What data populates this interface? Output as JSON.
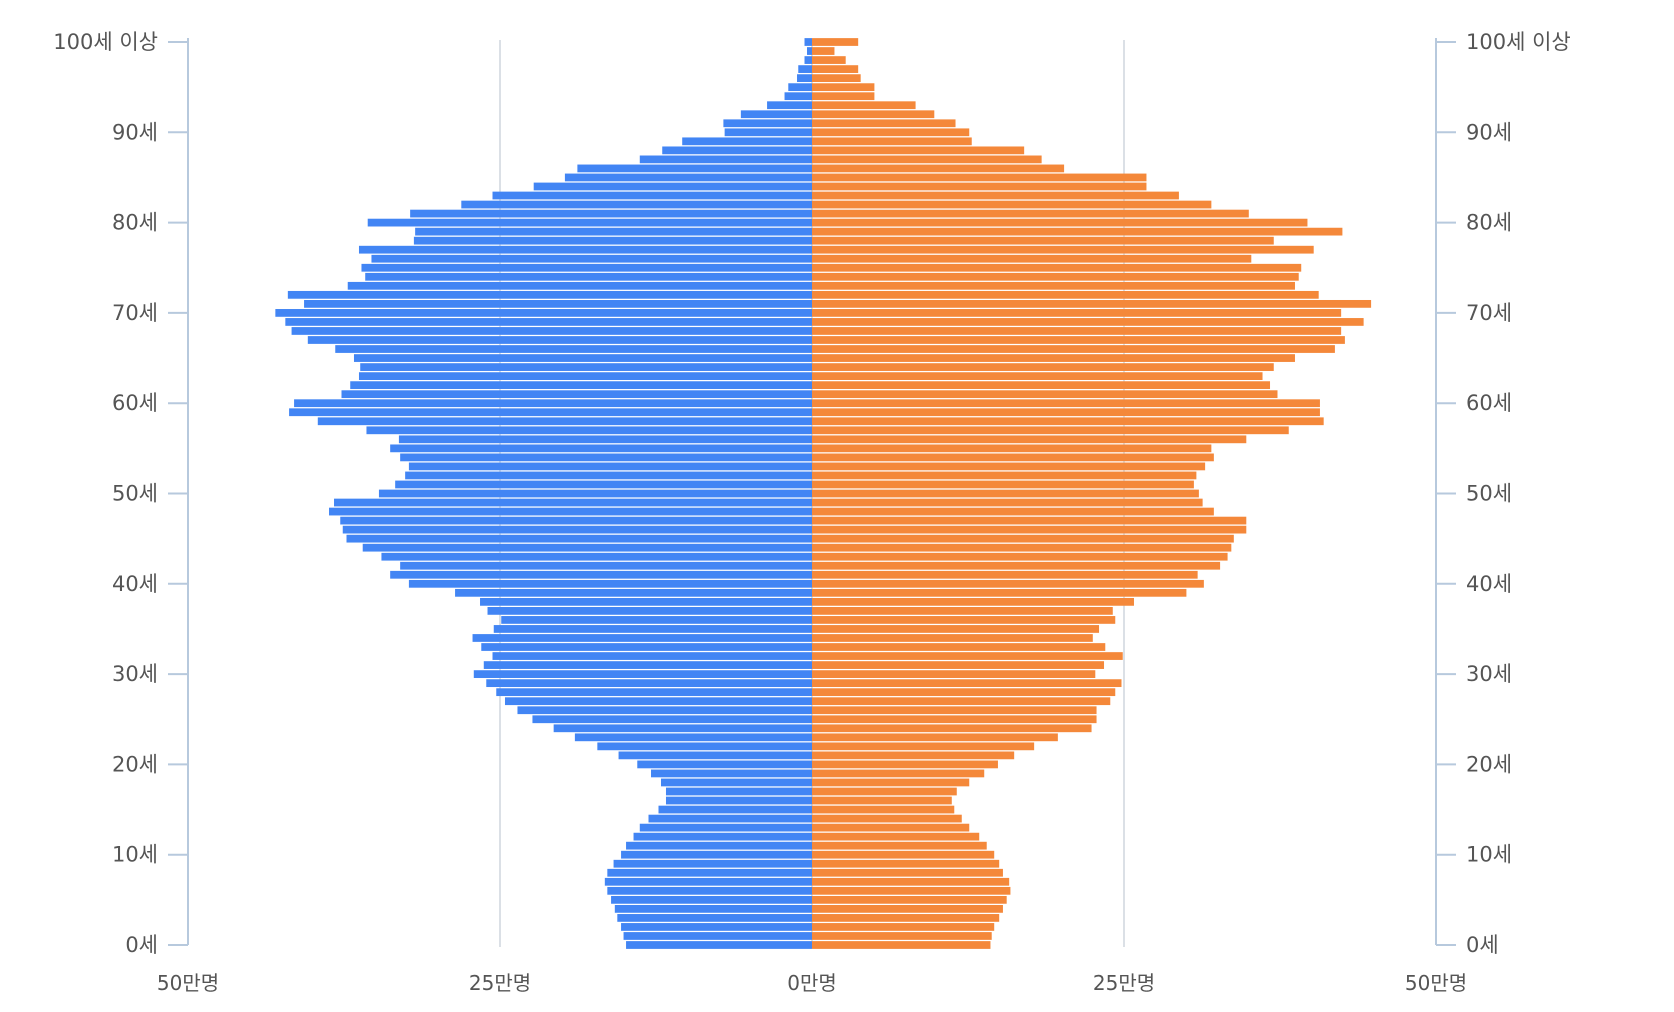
{
  "chart_data": {
    "type": "bar",
    "orientation": "horizontal",
    "subtype": "population-pyramid",
    "title": "",
    "unit": "만명",
    "xlim": [
      -50,
      50
    ],
    "colors": {
      "left": "#4285f4",
      "right": "#f4883a",
      "grid": "#cfd6de",
      "axis": "#b7c9dd"
    },
    "x_ticks": [
      {
        "value": -50,
        "label": "50만명"
      },
      {
        "value": -25,
        "label": "25만명"
      },
      {
        "value": 0,
        "label": "0만명"
      },
      {
        "value": 25,
        "label": "25만명"
      },
      {
        "value": 50,
        "label": "50만명"
      }
    ],
    "y_ticks": [
      {
        "age": 0,
        "label": "0세"
      },
      {
        "age": 10,
        "label": "10세"
      },
      {
        "age": 20,
        "label": "20세"
      },
      {
        "age": 30,
        "label": "30세"
      },
      {
        "age": 40,
        "label": "40세"
      },
      {
        "age": 50,
        "label": "50세"
      },
      {
        "age": 60,
        "label": "60세"
      },
      {
        "age": 70,
        "label": "70세"
      },
      {
        "age": 80,
        "label": "80세"
      },
      {
        "age": 90,
        "label": "90세"
      },
      {
        "age": 100,
        "label": "100세 이상"
      }
    ],
    "ages": [
      0,
      1,
      2,
      3,
      4,
      5,
      6,
      7,
      8,
      9,
      10,
      11,
      12,
      13,
      14,
      15,
      16,
      17,
      18,
      19,
      20,
      21,
      22,
      23,
      24,
      25,
      26,
      27,
      28,
      29,
      30,
      31,
      32,
      33,
      34,
      35,
      36,
      37,
      38,
      39,
      40,
      41,
      42,
      43,
      44,
      45,
      46,
      47,
      48,
      49,
      50,
      51,
      52,
      53,
      54,
      55,
      56,
      57,
      58,
      59,
      60,
      61,
      62,
      63,
      64,
      65,
      66,
      67,
      68,
      69,
      70,
      71,
      72,
      73,
      74,
      75,
      76,
      77,
      78,
      79,
      80,
      81,
      82,
      83,
      84,
      85,
      86,
      87,
      88,
      89,
      90,
      91,
      92,
      93,
      94,
      95,
      96,
      97,
      98,
      99,
      100
    ],
    "series": [
      {
        "side": "left",
        "values": [
          14.9,
          15.1,
          15.3,
          15.6,
          15.8,
          16.1,
          16.4,
          16.6,
          16.4,
          15.9,
          15.3,
          14.9,
          14.3,
          13.8,
          13.1,
          12.3,
          11.7,
          11.7,
          12.1,
          12.9,
          14.0,
          15.5,
          17.2,
          19.0,
          20.7,
          22.4,
          23.6,
          24.6,
          25.3,
          26.1,
          27.1,
          26.3,
          25.6,
          26.5,
          27.2,
          25.5,
          24.9,
          26.0,
          26.6,
          28.6,
          32.3,
          33.8,
          33.0,
          34.5,
          36.0,
          37.3,
          37.6,
          37.8,
          38.7,
          38.3,
          34.7,
          33.4,
          32.6,
          32.3,
          33.0,
          33.8,
          33.1,
          35.7,
          39.6,
          41.9,
          41.5,
          37.7,
          37.0,
          36.3,
          36.2,
          36.7,
          38.2,
          40.4,
          41.7,
          42.2,
          43.0,
          40.7,
          42.0,
          37.2,
          35.8,
          36.1,
          35.3,
          36.3,
          31.9,
          31.8,
          35.6,
          32.2,
          28.1,
          25.6,
          22.3,
          19.8,
          18.8,
          13.8,
          12.0,
          10.4,
          7.0,
          7.1,
          5.7,
          3.6,
          2.2,
          1.9,
          1.2,
          1.1,
          0.6,
          0.4,
          0.6
        ]
      },
      {
        "side": "right",
        "values": [
          14.3,
          14.4,
          14.6,
          15.0,
          15.3,
          15.6,
          15.9,
          15.8,
          15.3,
          15.0,
          14.6,
          14.0,
          13.4,
          12.6,
          12.0,
          11.4,
          11.2,
          11.6,
          12.6,
          13.8,
          14.9,
          16.2,
          17.8,
          19.7,
          22.4,
          22.8,
          22.8,
          23.9,
          24.3,
          24.8,
          22.7,
          23.4,
          24.9,
          23.5,
          22.5,
          23.0,
          24.3,
          24.1,
          25.8,
          30.0,
          31.4,
          30.9,
          32.7,
          33.3,
          33.6,
          33.8,
          34.8,
          34.8,
          32.2,
          31.3,
          31.0,
          30.6,
          30.8,
          31.5,
          32.2,
          32.0,
          34.8,
          38.2,
          41.0,
          40.7,
          40.7,
          37.3,
          36.7,
          36.1,
          37.0,
          38.7,
          41.9,
          42.7,
          42.4,
          44.2,
          42.4,
          44.8,
          40.6,
          38.7,
          39.0,
          39.2,
          35.2,
          40.2,
          37.0,
          42.5,
          39.7,
          35.0,
          32.0,
          29.4,
          26.8,
          26.8,
          20.2,
          18.4,
          17.0,
          12.8,
          12.6,
          11.5,
          9.8,
          8.3,
          5.0,
          5.0,
          3.9,
          3.7,
          2.7,
          1.8,
          3.7
        ]
      }
    ]
  }
}
